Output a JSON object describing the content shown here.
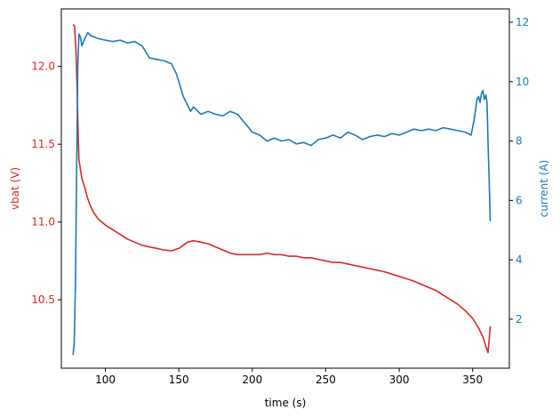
{
  "chart_data": {
    "type": "line",
    "title": "",
    "xlabel": "time (s)",
    "ylabel_left": "vbat (V)",
    "ylabel_right": "current (A)",
    "xlim": [
      70,
      375
    ],
    "ylim_left": [
      10.06,
      12.37
    ],
    "ylim_right": [
      0.35,
      12.45
    ],
    "grid": false,
    "x_ticks": [
      100,
      150,
      200,
      250,
      300,
      350
    ],
    "y_left_ticks": [
      10.5,
      11.0,
      11.5,
      12.0
    ],
    "y_right_ticks": [
      2,
      4,
      6,
      8,
      10,
      12
    ],
    "colors": {
      "left": "#d62728",
      "right": "#1f77b4"
    },
    "series": [
      {
        "name": "",
        "axis": "left",
        "color": "#d62728",
        "points": [
          [
            78,
            12.27
          ],
          [
            79,
            12.26
          ],
          [
            80,
            12.1
          ],
          [
            80.8,
            11.85
          ],
          [
            81.5,
            11.55
          ],
          [
            82,
            11.4
          ],
          [
            84,
            11.28
          ],
          [
            86,
            11.22
          ],
          [
            88,
            11.15
          ],
          [
            90,
            11.1
          ],
          [
            92,
            11.06
          ],
          [
            95,
            11.02
          ],
          [
            100,
            10.98
          ],
          [
            105,
            10.95
          ],
          [
            110,
            10.92
          ],
          [
            115,
            10.89
          ],
          [
            120,
            10.87
          ],
          [
            125,
            10.85
          ],
          [
            130,
            10.84
          ],
          [
            135,
            10.83
          ],
          [
            140,
            10.82
          ],
          [
            145,
            10.815
          ],
          [
            150,
            10.83
          ],
          [
            153,
            10.85
          ],
          [
            156,
            10.87
          ],
          [
            160,
            10.88
          ],
          [
            165,
            10.87
          ],
          [
            170,
            10.86
          ],
          [
            175,
            10.84
          ],
          [
            180,
            10.82
          ],
          [
            185,
            10.8
          ],
          [
            190,
            10.79
          ],
          [
            195,
            10.79
          ],
          [
            200,
            10.79
          ],
          [
            205,
            10.79
          ],
          [
            210,
            10.8
          ],
          [
            215,
            10.79
          ],
          [
            220,
            10.79
          ],
          [
            225,
            10.78
          ],
          [
            230,
            10.78
          ],
          [
            235,
            10.77
          ],
          [
            240,
            10.77
          ],
          [
            245,
            10.76
          ],
          [
            250,
            10.75
          ],
          [
            255,
            10.74
          ],
          [
            260,
            10.74
          ],
          [
            265,
            10.73
          ],
          [
            270,
            10.72
          ],
          [
            275,
            10.71
          ],
          [
            280,
            10.7
          ],
          [
            285,
            10.69
          ],
          [
            290,
            10.68
          ],
          [
            295,
            10.665
          ],
          [
            300,
            10.65
          ],
          [
            305,
            10.635
          ],
          [
            310,
            10.62
          ],
          [
            315,
            10.6
          ],
          [
            320,
            10.58
          ],
          [
            325,
            10.56
          ],
          [
            330,
            10.53
          ],
          [
            335,
            10.5
          ],
          [
            340,
            10.47
          ],
          [
            345,
            10.43
          ],
          [
            350,
            10.38
          ],
          [
            354,
            10.32
          ],
          [
            357,
            10.26
          ],
          [
            359,
            10.2
          ],
          [
            360.5,
            10.16
          ],
          [
            361.3,
            10.25
          ],
          [
            362,
            10.33
          ]
        ]
      },
      {
        "name": "",
        "axis": "right",
        "color": "#1f77b4",
        "points": [
          [
            78,
            0.8
          ],
          [
            78.8,
            1.2
          ],
          [
            79.6,
            3.2
          ],
          [
            80.4,
            7.0
          ],
          [
            81.2,
            10.5
          ],
          [
            82,
            11.6
          ],
          [
            83,
            11.5
          ],
          [
            84,
            11.2
          ],
          [
            86,
            11.45
          ],
          [
            88,
            11.65
          ],
          [
            90,
            11.55
          ],
          [
            95,
            11.45
          ],
          [
            100,
            11.4
          ],
          [
            105,
            11.35
          ],
          [
            110,
            11.4
          ],
          [
            115,
            11.3
          ],
          [
            120,
            11.35
          ],
          [
            125,
            11.2
          ],
          [
            130,
            10.8
          ],
          [
            135,
            10.75
          ],
          [
            140,
            10.7
          ],
          [
            145,
            10.6
          ],
          [
            148,
            10.3
          ],
          [
            150,
            10.0
          ],
          [
            153,
            9.5
          ],
          [
            156,
            9.2
          ],
          [
            158,
            9.0
          ],
          [
            160,
            9.15
          ],
          [
            165,
            8.9
          ],
          [
            170,
            9.0
          ],
          [
            175,
            8.9
          ],
          [
            180,
            8.85
          ],
          [
            185,
            9.0
          ],
          [
            190,
            8.9
          ],
          [
            195,
            8.6
          ],
          [
            200,
            8.3
          ],
          [
            205,
            8.2
          ],
          [
            210,
            8.0
          ],
          [
            215,
            8.1
          ],
          [
            220,
            8.0
          ],
          [
            225,
            8.05
          ],
          [
            230,
            7.9
          ],
          [
            235,
            7.95
          ],
          [
            240,
            7.85
          ],
          [
            245,
            8.05
          ],
          [
            250,
            8.1
          ],
          [
            255,
            8.2
          ],
          [
            260,
            8.1
          ],
          [
            265,
            8.3
          ],
          [
            270,
            8.2
          ],
          [
            275,
            8.05
          ],
          [
            280,
            8.15
          ],
          [
            285,
            8.2
          ],
          [
            290,
            8.15
          ],
          [
            295,
            8.25
          ],
          [
            300,
            8.2
          ],
          [
            305,
            8.3
          ],
          [
            310,
            8.4
          ],
          [
            315,
            8.35
          ],
          [
            320,
            8.4
          ],
          [
            325,
            8.35
          ],
          [
            330,
            8.45
          ],
          [
            335,
            8.4
          ],
          [
            340,
            8.35
          ],
          [
            345,
            8.3
          ],
          [
            349,
            8.2
          ],
          [
            351,
            8.7
          ],
          [
            353,
            9.4
          ],
          [
            354,
            9.5
          ],
          [
            355,
            9.3
          ],
          [
            356,
            9.6
          ],
          [
            357,
            9.7
          ],
          [
            358,
            9.4
          ],
          [
            359,
            9.55
          ],
          [
            359.8,
            9.3
          ],
          [
            360.5,
            8.0
          ],
          [
            361.3,
            6.6
          ],
          [
            362,
            5.3
          ]
        ]
      }
    ]
  }
}
